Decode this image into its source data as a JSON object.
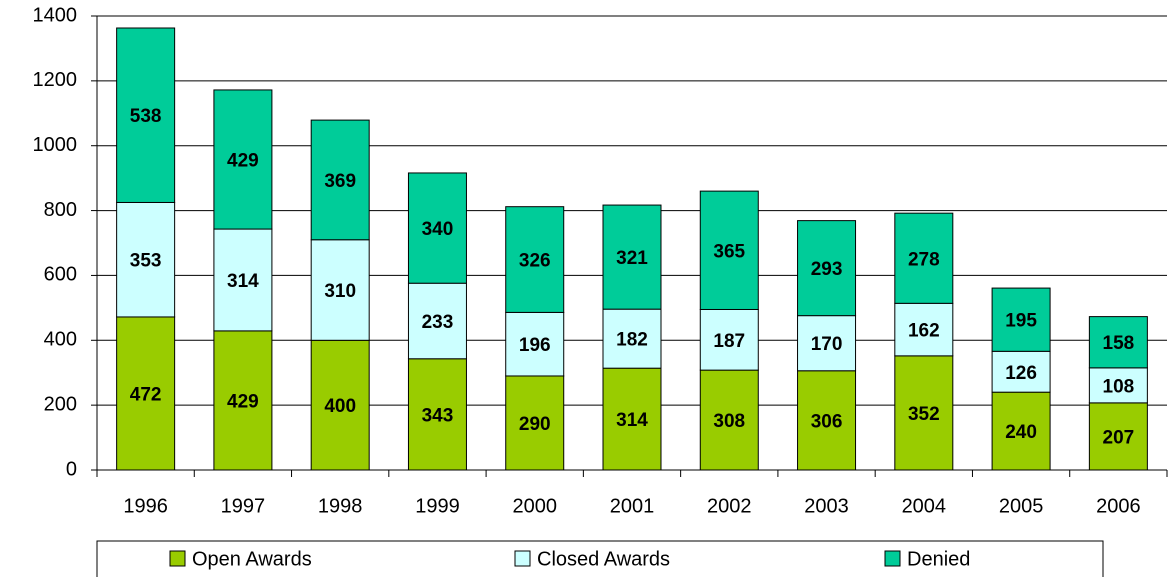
{
  "chart_data": {
    "type": "stacked_bar",
    "categories": [
      "1996",
      "1997",
      "1998",
      "1999",
      "2000",
      "2001",
      "2002",
      "2003",
      "2004",
      "2005",
      "2006"
    ],
    "series": [
      {
        "name": "Open Awards",
        "color": "#99cc00",
        "values": [
          472,
          429,
          400,
          343,
          290,
          314,
          308,
          306,
          352,
          240,
          207
        ]
      },
      {
        "name": "Closed Awards",
        "color": "#ccffff",
        "values": [
          353,
          314,
          310,
          233,
          196,
          182,
          187,
          170,
          162,
          126,
          108
        ]
      },
      {
        "name": "Denied",
        "color": "#00cc99",
        "values": [
          538,
          429,
          369,
          340,
          326,
          321,
          365,
          293,
          278,
          195,
          158
        ]
      }
    ],
    "ylim": [
      0,
      1400
    ],
    "yticks": [
      0,
      200,
      400,
      600,
      800,
      1000,
      1200,
      1400
    ],
    "grid": true,
    "legend": "bottom"
  }
}
